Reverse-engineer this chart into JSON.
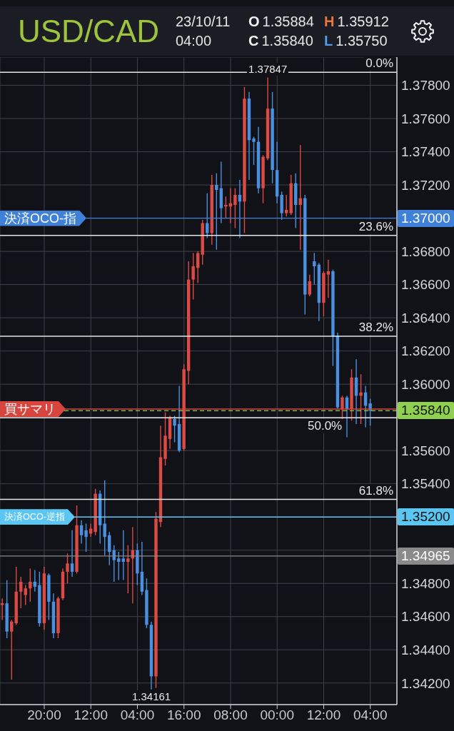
{
  "chart_data": {
    "type": "candlestick",
    "title": "USD/CAD",
    "subtitle": "23/10/11 04:00",
    "categories": [
      null,
      null,
      null,
      null,
      null,
      null,
      null,
      null,
      null,
      "20:00",
      null,
      null,
      null,
      null,
      null,
      null,
      null,
      null,
      null,
      "12:00",
      null,
      null,
      null,
      null,
      null,
      null,
      null,
      null,
      null,
      "04:00",
      null,
      null,
      null,
      null,
      null,
      null,
      null,
      null,
      null,
      "16:00",
      null,
      null,
      null,
      null,
      null,
      null,
      null,
      null,
      null,
      "08:00",
      null,
      null,
      null,
      null,
      null,
      null,
      null,
      null,
      null,
      "00:00",
      null,
      null,
      null,
      null,
      null,
      null,
      null,
      null,
      null,
      "12:00",
      null,
      null,
      null,
      null,
      null,
      null,
      null,
      null,
      null,
      "04:00"
    ],
    "ohlc": [
      [
        1.3467,
        1.3471,
        1.3458,
        1.3468
      ],
      [
        1.3468,
        1.3482,
        1.3447,
        1.3451
      ],
      [
        1.3451,
        1.3458,
        1.3422,
        1.3457
      ],
      [
        1.3456,
        1.349,
        1.3455,
        1.3475
      ],
      [
        1.3475,
        1.3484,
        1.3465,
        1.3481
      ],
      [
        1.3473,
        1.3479,
        1.3467,
        1.3477
      ],
      [
        1.3477,
        1.3489,
        1.3469,
        1.3481
      ],
      [
        1.3481,
        1.3488,
        1.3475,
        1.3478
      ],
      [
        1.3479,
        1.3487,
        1.3454,
        1.3456
      ],
      [
        1.3456,
        1.349,
        1.3452,
        1.3486
      ],
      [
        1.3485,
        1.3486,
        1.3458,
        1.3469
      ],
      [
        1.3469,
        1.3474,
        1.3447,
        1.345
      ],
      [
        1.345,
        1.3472,
        1.3447,
        1.3471
      ],
      [
        1.3471,
        1.3489,
        1.347,
        1.3487
      ],
      [
        1.3487,
        1.3498,
        1.348,
        1.3492
      ],
      [
        1.3492,
        1.3512,
        1.3484,
        1.3487
      ],
      [
        1.3487,
        1.3527,
        1.3486,
        1.3515
      ],
      [
        1.3515,
        1.3518,
        1.3504,
        1.3509
      ],
      [
        1.3512,
        1.3516,
        1.3499,
        1.3508
      ],
      [
        1.351,
        1.3516,
        1.3508,
        1.3513
      ],
      [
        1.3511,
        1.3537,
        1.3509,
        1.3534
      ],
      [
        1.3534,
        1.3536,
        1.3504,
        1.3515
      ],
      [
        1.3516,
        1.3542,
        1.3497,
        1.3508
      ],
      [
        1.3509,
        1.3511,
        1.3491,
        1.3499
      ],
      [
        1.35,
        1.3503,
        1.3481,
        1.3494
      ],
      [
        1.3495,
        1.3499,
        1.3482,
        1.3493
      ],
      [
        1.3495,
        1.3512,
        1.3482,
        1.3493
      ],
      [
        1.3493,
        1.3503,
        1.3474,
        1.3495
      ],
      [
        1.3495,
        1.3514,
        1.3468,
        1.35
      ],
      [
        1.35,
        1.3504,
        1.3479,
        1.3486
      ],
      [
        1.3487,
        1.3505,
        1.3473,
        1.3475
      ],
      [
        1.3476,
        1.3483,
        1.3453,
        1.3455
      ],
      [
        1.3455,
        1.3457,
        1.34161,
        1.3424
      ],
      [
        1.3424,
        1.3523,
        1.3417,
        1.3519
      ],
      [
        1.3517,
        1.3575,
        1.3514,
        1.3556
      ],
      [
        1.3555,
        1.3583,
        1.3551,
        1.3569
      ],
      [
        1.3567,
        1.3581,
        1.3561,
        1.358
      ],
      [
        1.3579,
        1.3581,
        1.3565,
        1.3575
      ],
      [
        1.3576,
        1.3599,
        1.3559,
        1.356
      ],
      [
        1.3561,
        1.3612,
        1.356,
        1.3609
      ],
      [
        1.3608,
        1.3674,
        1.36,
        1.3663
      ],
      [
        1.3663,
        1.3679,
        1.3651,
        1.3671
      ],
      [
        1.367,
        1.368,
        1.3661,
        1.3679
      ],
      [
        1.3678,
        1.3699,
        1.3672,
        1.3697
      ],
      [
        1.3697,
        1.3715,
        1.3688,
        1.3691
      ],
      [
        1.3691,
        1.3726,
        1.3684,
        1.372
      ],
      [
        1.372,
        1.3727,
        1.3681,
        1.3717
      ],
      [
        1.3718,
        1.3734,
        1.3697,
        1.3706
      ],
      [
        1.3707,
        1.3713,
        1.37,
        1.3708
      ],
      [
        1.3707,
        1.3718,
        1.3697,
        1.3709
      ],
      [
        1.3708,
        1.3718,
        1.3694,
        1.3714
      ],
      [
        1.3714,
        1.3723,
        1.3688,
        1.371
      ],
      [
        1.371,
        1.3779,
        1.3691,
        1.3772
      ],
      [
        1.3772,
        1.3776,
        1.3723,
        1.3747
      ],
      [
        1.3748,
        1.3749,
        1.3732,
        1.3746
      ],
      [
        1.3746,
        1.3755,
        1.3715,
        1.3718
      ],
      [
        1.3718,
        1.3738,
        1.3709,
        1.3737
      ],
      [
        1.3736,
        1.37847,
        1.3735,
        1.3766
      ],
      [
        1.3766,
        1.3776,
        1.3721,
        1.3729
      ],
      [
        1.3729,
        1.3746,
        1.3709,
        1.3713
      ],
      [
        1.3714,
        1.3716,
        1.3699,
        1.3703
      ],
      [
        1.3703,
        1.3714,
        1.3701,
        1.3705
      ],
      [
        1.3703,
        1.3726,
        1.3702,
        1.3721
      ],
      [
        1.3721,
        1.3727,
        1.3694,
        1.3708
      ],
      [
        1.3708,
        1.3744,
        1.3681,
        1.3712
      ],
      [
        1.3712,
        1.3714,
        1.3642,
        1.3654
      ],
      [
        1.3654,
        1.3666,
        1.3653,
        1.3662
      ],
      [
        1.3674,
        1.3679,
        1.366,
        1.3671
      ],
      [
        1.3672,
        1.3673,
        1.3638,
        1.3649
      ],
      [
        1.3649,
        1.3668,
        1.3641,
        1.3667
      ],
      [
        1.3666,
        1.3675,
        1.3652,
        1.3668
      ],
      [
        1.3668,
        1.3669,
        1.3611,
        1.3629
      ],
      [
        1.3629,
        1.3631,
        1.3585,
        1.3586
      ],
      [
        1.3585,
        1.3593,
        1.3579,
        1.3592
      ],
      [
        1.3592,
        1.3593,
        1.3568,
        1.3585
      ],
      [
        1.3585,
        1.3609,
        1.3578,
        1.3604
      ],
      [
        1.3604,
        1.3615,
        1.3576,
        1.3593
      ],
      [
        1.3593,
        1.3606,
        1.3576,
        1.3595
      ],
      [
        1.3595,
        1.3599,
        1.3574,
        1.3587
      ],
      [
        1.35884,
        1.35912,
        1.3575,
        1.3584
      ]
    ],
    "colors": [
      "#dc4a43",
      "#4a8fe0",
      "#dc4a43",
      "#dc4a43",
      "#dc4a43",
      "#dc4a43",
      "#dc4a43",
      "#4a8fe0",
      "#4a8fe0",
      "#dc4a43",
      "#4a8fe0",
      "#4a8fe0",
      "#dc4a43",
      "#dc4a43",
      "#dc4a43",
      "#4a8fe0",
      "#dc4a43",
      "#4a8fe0",
      "#4a8fe0",
      "#dc4a43",
      "#dc4a43",
      "#4a8fe0",
      "#4a8fe0",
      "#4a8fe0",
      "#4a8fe0",
      "#4a8fe0",
      "#4a8fe0",
      "#dc4a43",
      "#dc4a43",
      "#4a8fe0",
      "#4a8fe0",
      "#4a8fe0",
      "#4a8fe0",
      "#dc4a43",
      "#dc4a43",
      "#dc4a43",
      "#dc4a43",
      "#4a8fe0",
      "#4a8fe0",
      "#dc4a43",
      "#dc4a43",
      "#dc4a43",
      "#dc4a43",
      "#dc4a43",
      "#4a8fe0",
      "#dc4a43",
      "#4a8fe0",
      "#4a8fe0",
      "#dc4a43",
      "#dc4a43",
      "#dc4a43",
      "#4a8fe0",
      "#dc4a43",
      "#4a8fe0",
      "#4a8fe0",
      "#4a8fe0",
      "#dc4a43",
      "#dc4a43",
      "#4a8fe0",
      "#4a8fe0",
      "#4a8fe0",
      "#dc4a43",
      "#dc4a43",
      "#4a8fe0",
      "#dc4a43",
      "#4a8fe0",
      "#dc4a43",
      "#4a8fe0",
      "#4a8fe0",
      "#dc4a43",
      "#dc4a43",
      "#4a8fe0",
      "#4a8fe0",
      "#dc4a43",
      "#4a8fe0",
      "#dc4a43",
      "#4a8fe0",
      "#dc4a43",
      "#4a8fe0",
      "#4a8fe0"
    ],
    "ylim": [
      1.3407,
      1.3797
    ],
    "yticks": [
      {
        "value": 1.342,
        "label": "1.34200"
      },
      {
        "value": 1.344,
        "label": "1.34400"
      },
      {
        "value": 1.346,
        "label": "1.34600"
      },
      {
        "value": 1.348,
        "label": "1.34800"
      },
      {
        "value": 1.35,
        "label": null
      },
      {
        "value": 1.352,
        "label": null
      },
      {
        "value": 1.354,
        "label": "1.35400"
      },
      {
        "value": 1.356,
        "label": "1.35600"
      },
      {
        "value": 1.358,
        "label": null
      },
      {
        "value": 1.36,
        "label": "1.36000"
      },
      {
        "value": 1.362,
        "label": "1.36200"
      },
      {
        "value": 1.364,
        "label": "1.36400"
      },
      {
        "value": 1.366,
        "label": "1.36600"
      },
      {
        "value": 1.368,
        "label": "1.36800"
      },
      {
        "value": 1.37,
        "label": null
      },
      {
        "value": 1.372,
        "label": "1.37200"
      },
      {
        "value": 1.374,
        "label": "1.37400"
      },
      {
        "value": 1.376,
        "label": "1.37600"
      },
      {
        "value": 1.378,
        "label": "1.37800"
      }
    ],
    "y2lim": [
      91.5,
      -2.2
    ],
    "grid": true,
    "ref_lines": [
      {
        "axis": "y2",
        "value": 0,
        "label": "0.0%",
        "color": "#e6e6e6"
      },
      {
        "axis": "y2",
        "value": 23.6,
        "label": "23.6%",
        "color": "#e6e6e6"
      },
      {
        "axis": "y2",
        "value": 38.2,
        "label": "38.2%",
        "color": "#e6e6e6"
      },
      {
        "axis": "y2",
        "value": 50,
        "label": "50.0%",
        "color": "#e6e6e6"
      },
      {
        "axis": "y2",
        "value": 61.8,
        "label": "61.8%",
        "color": "#e6e6e6"
      },
      {
        "axis": "y",
        "value": 1.37,
        "label": "1.37000",
        "color": "#3f80d8"
      },
      {
        "axis": "y",
        "value": 1.3585,
        "color": "#d8453e"
      },
      {
        "axis": "y",
        "value": 1.3584,
        "label": "1.35840",
        "color": "#8fd14f",
        "line_style": "dashed"
      },
      {
        "axis": "y",
        "value": 1.352,
        "label": "1.35200",
        "color": "#5cc6f2"
      },
      {
        "axis": "y",
        "value": 1.34965,
        "label": "1.34965",
        "color": "#8a8a8a"
      }
    ],
    "annotations": [
      "O 1.35884",
      "H 1.35912",
      "C 1.35840",
      "L 1.35750",
      {
        "text": "決済OCO-指",
        "y": 1.37
      },
      {
        "text": "買サマリ",
        "y": 1.3585
      },
      {
        "text": "決済OCO-逆指",
        "y": 1.352
      },
      {
        "text": "1.37847",
        "y": 1.37847
      },
      {
        "text": "1.34161",
        "y": 1.34161
      }
    ]
  }
}
